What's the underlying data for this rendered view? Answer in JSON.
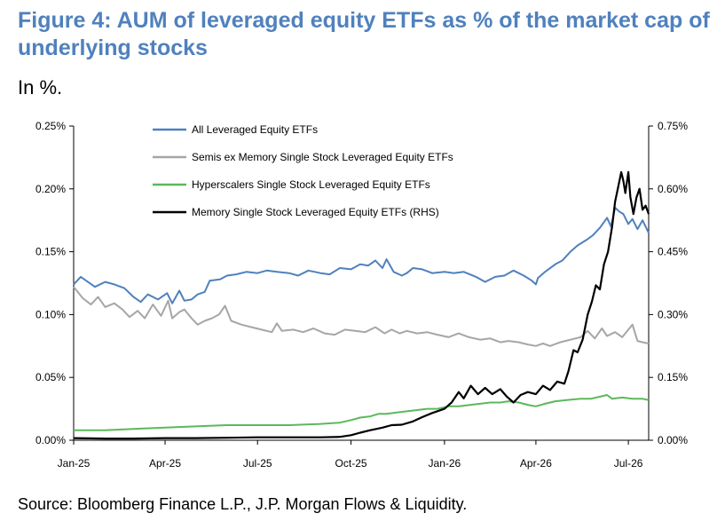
{
  "title": "Figure 4: AUM of leveraged equity ETFs as % of the market cap of underlying stocks",
  "subtitle": "In %.",
  "source": "Source: Bloomberg Finance L.P., J.P. Morgan Flows & Liquidity.",
  "chart_data": {
    "type": "line",
    "x_axis": {
      "type": "date",
      "range": [
        "2025-01-01",
        "2026-07-21"
      ],
      "ticks": [
        {
          "label": "Jan-25",
          "date": "2025-01-01"
        },
        {
          "label": "Apr-25",
          "date": "2025-04-01"
        },
        {
          "label": "Jul-25",
          "date": "2025-07-01"
        },
        {
          "label": "Oct-25",
          "date": "2025-10-01"
        },
        {
          "label": "Jan-26",
          "date": "2026-01-01"
        },
        {
          "label": "Apr-26",
          "date": "2026-04-01"
        },
        {
          "label": "Jul-26",
          "date": "2026-07-01"
        }
      ]
    },
    "y_left": {
      "range": [
        0,
        0.25
      ],
      "ticks": [
        0,
        0.05,
        0.1,
        0.15,
        0.2,
        0.25
      ],
      "tick_labels": [
        "0.00%",
        "0.05%",
        "0.10%",
        "0.15%",
        "0.20%",
        "0.25%"
      ]
    },
    "y_right": {
      "range": [
        0,
        0.75
      ],
      "ticks": [
        0,
        0.15,
        0.3,
        0.45,
        0.6,
        0.75
      ],
      "tick_labels": [
        "0.00%",
        "0.15%",
        "0.30%",
        "0.45%",
        "0.60%",
        "0.75%"
      ]
    },
    "grid": false,
    "legend_position": "top-left",
    "series": [
      {
        "name": "All Leveraged Equity ETFs",
        "axis": "left",
        "color": "#4f81bd",
        "points": [
          [
            "2025-01-01",
            0.124
          ],
          [
            "2025-01-08",
            0.13
          ],
          [
            "2025-01-15",
            0.126
          ],
          [
            "2025-01-22",
            0.122
          ],
          [
            "2025-02-01",
            0.126
          ],
          [
            "2025-02-10",
            0.124
          ],
          [
            "2025-02-20",
            0.121
          ],
          [
            "2025-03-01",
            0.114
          ],
          [
            "2025-03-08",
            0.11
          ],
          [
            "2025-03-15",
            0.116
          ],
          [
            "2025-03-25",
            0.112
          ],
          [
            "2025-04-03",
            0.117
          ],
          [
            "2025-04-08",
            0.109
          ],
          [
            "2025-04-15",
            0.119
          ],
          [
            "2025-04-20",
            0.111
          ],
          [
            "2025-04-27",
            0.112
          ],
          [
            "2025-05-03",
            0.116
          ],
          [
            "2025-05-10",
            0.118
          ],
          [
            "2025-05-15",
            0.127
          ],
          [
            "2025-05-25",
            0.128
          ],
          [
            "2025-06-01",
            0.131
          ],
          [
            "2025-06-10",
            0.132
          ],
          [
            "2025-06-20",
            0.134
          ],
          [
            "2025-07-01",
            0.133
          ],
          [
            "2025-07-10",
            0.135
          ],
          [
            "2025-07-20",
            0.134
          ],
          [
            "2025-08-01",
            0.133
          ],
          [
            "2025-08-10",
            0.131
          ],
          [
            "2025-08-20",
            0.135
          ],
          [
            "2025-09-01",
            0.133
          ],
          [
            "2025-09-10",
            0.132
          ],
          [
            "2025-09-20",
            0.137
          ],
          [
            "2025-10-01",
            0.136
          ],
          [
            "2025-10-10",
            0.14
          ],
          [
            "2025-10-18",
            0.139
          ],
          [
            "2025-10-25",
            0.143
          ],
          [
            "2025-11-01",
            0.137
          ],
          [
            "2025-11-05",
            0.144
          ],
          [
            "2025-11-12",
            0.134
          ],
          [
            "2025-11-20",
            0.131
          ],
          [
            "2025-11-25",
            0.133
          ],
          [
            "2025-12-01",
            0.137
          ],
          [
            "2025-12-10",
            0.136
          ],
          [
            "2025-12-20",
            0.133
          ],
          [
            "2026-01-01",
            0.134
          ],
          [
            "2026-01-10",
            0.133
          ],
          [
            "2026-01-20",
            0.134
          ],
          [
            "2026-02-01",
            0.13
          ],
          [
            "2026-02-10",
            0.126
          ],
          [
            "2026-02-20",
            0.13
          ],
          [
            "2026-03-01",
            0.131
          ],
          [
            "2026-03-10",
            0.135
          ],
          [
            "2026-03-20",
            0.131
          ],
          [
            "2026-03-28",
            0.127
          ],
          [
            "2026-04-01",
            0.124
          ],
          [
            "2026-04-03",
            0.129
          ],
          [
            "2026-04-10",
            0.134
          ],
          [
            "2026-04-20",
            0.14
          ],
          [
            "2026-04-27",
            0.143
          ],
          [
            "2026-05-05",
            0.15
          ],
          [
            "2026-05-12",
            0.155
          ],
          [
            "2026-05-20",
            0.159
          ],
          [
            "2026-05-27",
            0.163
          ],
          [
            "2026-06-03",
            0.169
          ],
          [
            "2026-06-10",
            0.177
          ],
          [
            "2026-06-14",
            0.17
          ],
          [
            "2026-06-18",
            0.185
          ],
          [
            "2026-06-22",
            0.182
          ],
          [
            "2026-06-26",
            0.18
          ],
          [
            "2026-07-01",
            0.172
          ],
          [
            "2026-07-05",
            0.176
          ],
          [
            "2026-07-10",
            0.168
          ],
          [
            "2026-07-15",
            0.175
          ],
          [
            "2026-07-21",
            0.165
          ]
        ]
      },
      {
        "name": "Semis ex Memory Single Stock Leveraged Equity ETFs",
        "axis": "left",
        "color": "#a6a6a6",
        "points": [
          [
            "2025-01-01",
            0.122
          ],
          [
            "2025-01-05",
            0.118
          ],
          [
            "2025-01-10",
            0.113
          ],
          [
            "2025-01-18",
            0.108
          ],
          [
            "2025-01-25",
            0.114
          ],
          [
            "2025-02-01",
            0.106
          ],
          [
            "2025-02-10",
            0.109
          ],
          [
            "2025-02-18",
            0.104
          ],
          [
            "2025-02-25",
            0.098
          ],
          [
            "2025-03-05",
            0.103
          ],
          [
            "2025-03-12",
            0.097
          ],
          [
            "2025-03-20",
            0.108
          ],
          [
            "2025-03-28",
            0.099
          ],
          [
            "2025-04-04",
            0.111
          ],
          [
            "2025-04-08",
            0.097
          ],
          [
            "2025-04-15",
            0.102
          ],
          [
            "2025-04-20",
            0.104
          ],
          [
            "2025-04-27",
            0.097
          ],
          [
            "2025-05-03",
            0.092
          ],
          [
            "2025-05-10",
            0.095
          ],
          [
            "2025-05-17",
            0.097
          ],
          [
            "2025-05-24",
            0.1
          ],
          [
            "2025-05-30",
            0.107
          ],
          [
            "2025-06-05",
            0.095
          ],
          [
            "2025-06-15",
            0.092
          ],
          [
            "2025-06-25",
            0.09
          ],
          [
            "2025-07-05",
            0.088
          ],
          [
            "2025-07-15",
            0.086
          ],
          [
            "2025-07-20",
            0.093
          ],
          [
            "2025-07-25",
            0.087
          ],
          [
            "2025-08-05",
            0.088
          ],
          [
            "2025-08-15",
            0.086
          ],
          [
            "2025-08-25",
            0.089
          ],
          [
            "2025-09-05",
            0.085
          ],
          [
            "2025-09-15",
            0.084
          ],
          [
            "2025-09-25",
            0.088
          ],
          [
            "2025-10-05",
            0.087
          ],
          [
            "2025-10-15",
            0.086
          ],
          [
            "2025-10-25",
            0.09
          ],
          [
            "2025-11-03",
            0.085
          ],
          [
            "2025-11-10",
            0.088
          ],
          [
            "2025-11-18",
            0.085
          ],
          [
            "2025-11-25",
            0.087
          ],
          [
            "2025-12-05",
            0.085
          ],
          [
            "2025-12-15",
            0.086
          ],
          [
            "2025-12-25",
            0.084
          ],
          [
            "2026-01-05",
            0.082
          ],
          [
            "2026-01-15",
            0.085
          ],
          [
            "2026-01-25",
            0.082
          ],
          [
            "2026-02-05",
            0.08
          ],
          [
            "2026-02-15",
            0.081
          ],
          [
            "2026-02-25",
            0.078
          ],
          [
            "2026-03-05",
            0.079
          ],
          [
            "2026-03-15",
            0.078
          ],
          [
            "2026-03-25",
            0.076
          ],
          [
            "2026-04-01",
            0.075
          ],
          [
            "2026-04-08",
            0.077
          ],
          [
            "2026-04-15",
            0.075
          ],
          [
            "2026-04-25",
            0.078
          ],
          [
            "2026-05-05",
            0.08
          ],
          [
            "2026-05-15",
            0.082
          ],
          [
            "2026-05-22",
            0.087
          ],
          [
            "2026-05-29",
            0.081
          ],
          [
            "2026-06-05",
            0.089
          ],
          [
            "2026-06-10",
            0.083
          ],
          [
            "2026-06-18",
            0.086
          ],
          [
            "2026-06-25",
            0.082
          ],
          [
            "2026-07-01",
            0.088
          ],
          [
            "2026-07-05",
            0.092
          ],
          [
            "2026-07-10",
            0.079
          ],
          [
            "2026-07-15",
            0.078
          ],
          [
            "2026-07-21",
            0.077
          ]
        ]
      },
      {
        "name": "Hyperscalers Single Stock Leveraged Equity ETFs",
        "axis": "left",
        "color": "#5cb85c",
        "points": [
          [
            "2025-01-01",
            0.008
          ],
          [
            "2025-02-01",
            0.008
          ],
          [
            "2025-03-01",
            0.009
          ],
          [
            "2025-04-01",
            0.01
          ],
          [
            "2025-05-01",
            0.011
          ],
          [
            "2025-06-01",
            0.012
          ],
          [
            "2025-07-01",
            0.012
          ],
          [
            "2025-08-01",
            0.012
          ],
          [
            "2025-09-01",
            0.013
          ],
          [
            "2025-09-20",
            0.014
          ],
          [
            "2025-10-01",
            0.016
          ],
          [
            "2025-10-10",
            0.018
          ],
          [
            "2025-10-20",
            0.019
          ],
          [
            "2025-10-28",
            0.021
          ],
          [
            "2025-11-05",
            0.021
          ],
          [
            "2025-11-15",
            0.022
          ],
          [
            "2025-11-25",
            0.023
          ],
          [
            "2025-12-05",
            0.024
          ],
          [
            "2025-12-15",
            0.025
          ],
          [
            "2025-12-25",
            0.025
          ],
          [
            "2026-01-05",
            0.027
          ],
          [
            "2026-01-15",
            0.027
          ],
          [
            "2026-01-25",
            0.028
          ],
          [
            "2026-02-05",
            0.029
          ],
          [
            "2026-02-15",
            0.03
          ],
          [
            "2026-02-25",
            0.03
          ],
          [
            "2026-03-05",
            0.031
          ],
          [
            "2026-03-15",
            0.03
          ],
          [
            "2026-03-25",
            0.028
          ],
          [
            "2026-04-01",
            0.027
          ],
          [
            "2026-04-10",
            0.029
          ],
          [
            "2026-04-20",
            0.031
          ],
          [
            "2026-05-01",
            0.032
          ],
          [
            "2026-05-15",
            0.033
          ],
          [
            "2026-05-25",
            0.033
          ],
          [
            "2026-06-05",
            0.035
          ],
          [
            "2026-06-10",
            0.036
          ],
          [
            "2026-06-15",
            0.033
          ],
          [
            "2026-06-25",
            0.034
          ],
          [
            "2026-07-05",
            0.033
          ],
          [
            "2026-07-15",
            0.033
          ],
          [
            "2026-07-21",
            0.032
          ]
        ]
      },
      {
        "name": "Memory Single Stock Leveraged Equity ETFs (RHS)",
        "axis": "right",
        "color": "#000000",
        "points": [
          [
            "2025-01-01",
            0.005
          ],
          [
            "2025-02-01",
            0.004
          ],
          [
            "2025-03-01",
            0.004
          ],
          [
            "2025-04-01",
            0.005
          ],
          [
            "2025-05-01",
            0.005
          ],
          [
            "2025-06-01",
            0.006
          ],
          [
            "2025-07-01",
            0.007
          ],
          [
            "2025-08-01",
            0.007
          ],
          [
            "2025-09-01",
            0.007
          ],
          [
            "2025-09-20",
            0.008
          ],
          [
            "2025-10-01",
            0.012
          ],
          [
            "2025-10-10",
            0.018
          ],
          [
            "2025-10-20",
            0.024
          ],
          [
            "2025-11-01",
            0.03
          ],
          [
            "2025-11-10",
            0.036
          ],
          [
            "2025-11-20",
            0.037
          ],
          [
            "2025-12-01",
            0.045
          ],
          [
            "2025-12-10",
            0.055
          ],
          [
            "2025-12-20",
            0.065
          ],
          [
            "2026-01-01",
            0.075
          ],
          [
            "2026-01-08",
            0.09
          ],
          [
            "2026-01-15",
            0.115
          ],
          [
            "2026-01-20",
            0.1
          ],
          [
            "2026-01-27",
            0.13
          ],
          [
            "2026-02-03",
            0.11
          ],
          [
            "2026-02-10",
            0.125
          ],
          [
            "2026-02-17",
            0.11
          ],
          [
            "2026-02-25",
            0.122
          ],
          [
            "2026-03-03",
            0.105
          ],
          [
            "2026-03-10",
            0.09
          ],
          [
            "2026-03-17",
            0.108
          ],
          [
            "2026-03-24",
            0.115
          ],
          [
            "2026-04-01",
            0.11
          ],
          [
            "2026-04-08",
            0.13
          ],
          [
            "2026-04-15",
            0.12
          ],
          [
            "2026-04-22",
            0.14
          ],
          [
            "2026-04-29",
            0.135
          ],
          [
            "2026-05-03",
            0.165
          ],
          [
            "2026-05-08",
            0.215
          ],
          [
            "2026-05-12",
            0.21
          ],
          [
            "2026-05-17",
            0.24
          ],
          [
            "2026-05-22",
            0.3
          ],
          [
            "2026-05-26",
            0.33
          ],
          [
            "2026-05-30",
            0.37
          ],
          [
            "2026-06-03",
            0.36
          ],
          [
            "2026-06-07",
            0.42
          ],
          [
            "2026-06-11",
            0.45
          ],
          [
            "2026-06-15",
            0.51
          ],
          [
            "2026-06-18",
            0.57
          ],
          [
            "2026-06-21",
            0.605
          ],
          [
            "2026-06-24",
            0.64
          ],
          [
            "2026-06-26",
            0.62
          ],
          [
            "2026-06-28",
            0.59
          ],
          [
            "2026-07-01",
            0.64
          ],
          [
            "2026-07-03",
            0.58
          ],
          [
            "2026-07-06",
            0.54
          ],
          [
            "2026-07-09",
            0.58
          ],
          [
            "2026-07-12",
            0.6
          ],
          [
            "2026-07-15",
            0.55
          ],
          [
            "2026-07-18",
            0.56
          ],
          [
            "2026-07-21",
            0.54
          ]
        ]
      }
    ]
  }
}
